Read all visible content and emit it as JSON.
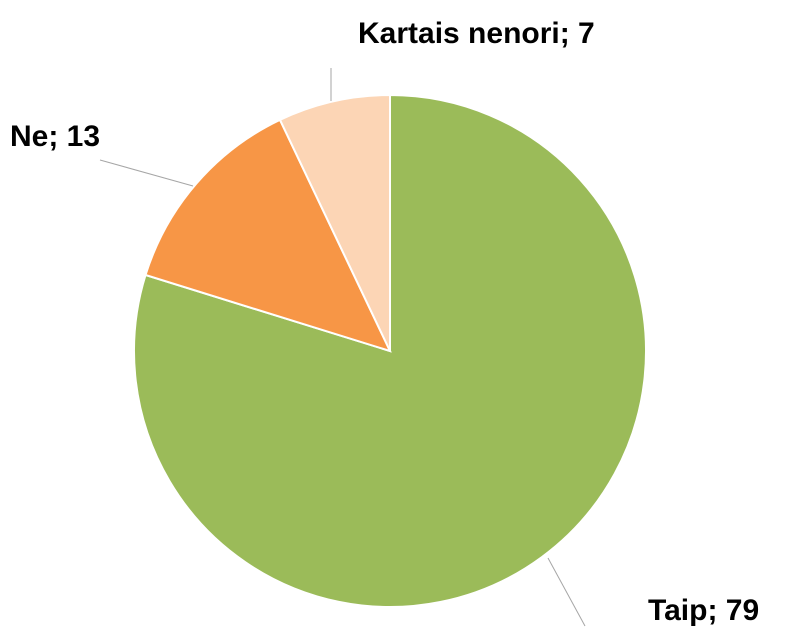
{
  "chart_data": {
    "type": "pie",
    "values": [
      79,
      13,
      7
    ],
    "value_labels": [
      "Taip; 79",
      "Ne; 13",
      "Kartais nenori; 7"
    ],
    "colors": [
      "#9bbb59",
      "#f79646",
      "#fcd5b5"
    ]
  }
}
